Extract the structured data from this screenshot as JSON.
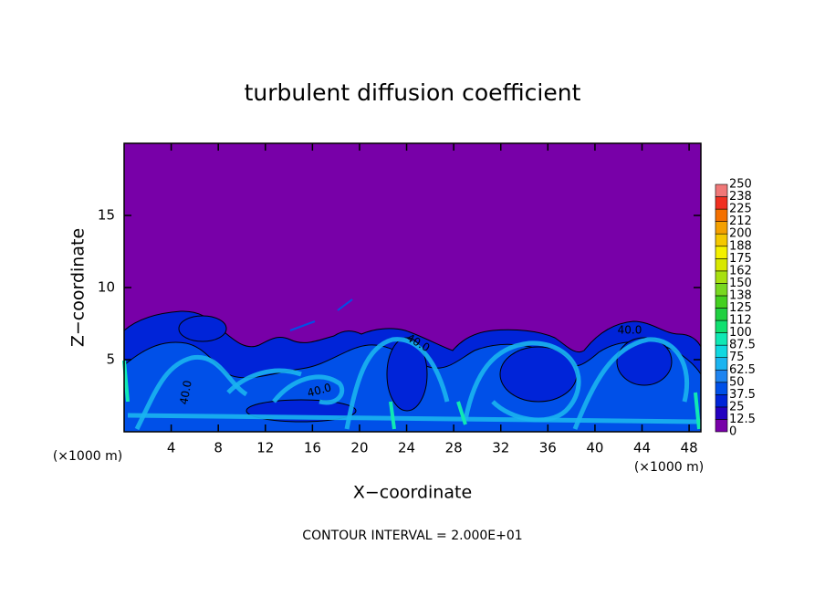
{
  "chart_data": {
    "type": "contour",
    "title": "turbulent diffusion coefficient",
    "x_label": "X−coordinate",
    "y_label": "Z−coordinate",
    "x_unit_label": "(×1000 m)",
    "footer": "CONTOUR INTERVAL = 2.000E+01",
    "contour_label": "40.0",
    "xlim": [
      0,
      49
    ],
    "xticks": [
      4,
      8,
      12,
      16,
      20,
      24,
      28,
      32,
      36,
      40,
      44,
      48
    ],
    "ylim": [
      0,
      20
    ],
    "yticks": [
      5,
      10,
      15
    ],
    "levels": [
      0,
      12.5,
      25,
      37.5,
      50,
      62.5,
      75,
      87.5,
      100,
      112,
      125,
      138,
      150,
      162,
      175,
      188,
      200,
      212,
      225,
      238,
      250
    ],
    "colors": [
      "#7800a8",
      "#2400c0",
      "#0024d8",
      "#0050e8",
      "#1e84f0",
      "#1ab4f0",
      "#10d8e0",
      "#10e8b4",
      "#10e070",
      "#20d040",
      "#44d020",
      "#78d820",
      "#a8e010",
      "#d8e800",
      "#f4f000",
      "#f4c800",
      "#f4a000",
      "#f47000",
      "#f03020",
      "#f07878"
    ]
  }
}
